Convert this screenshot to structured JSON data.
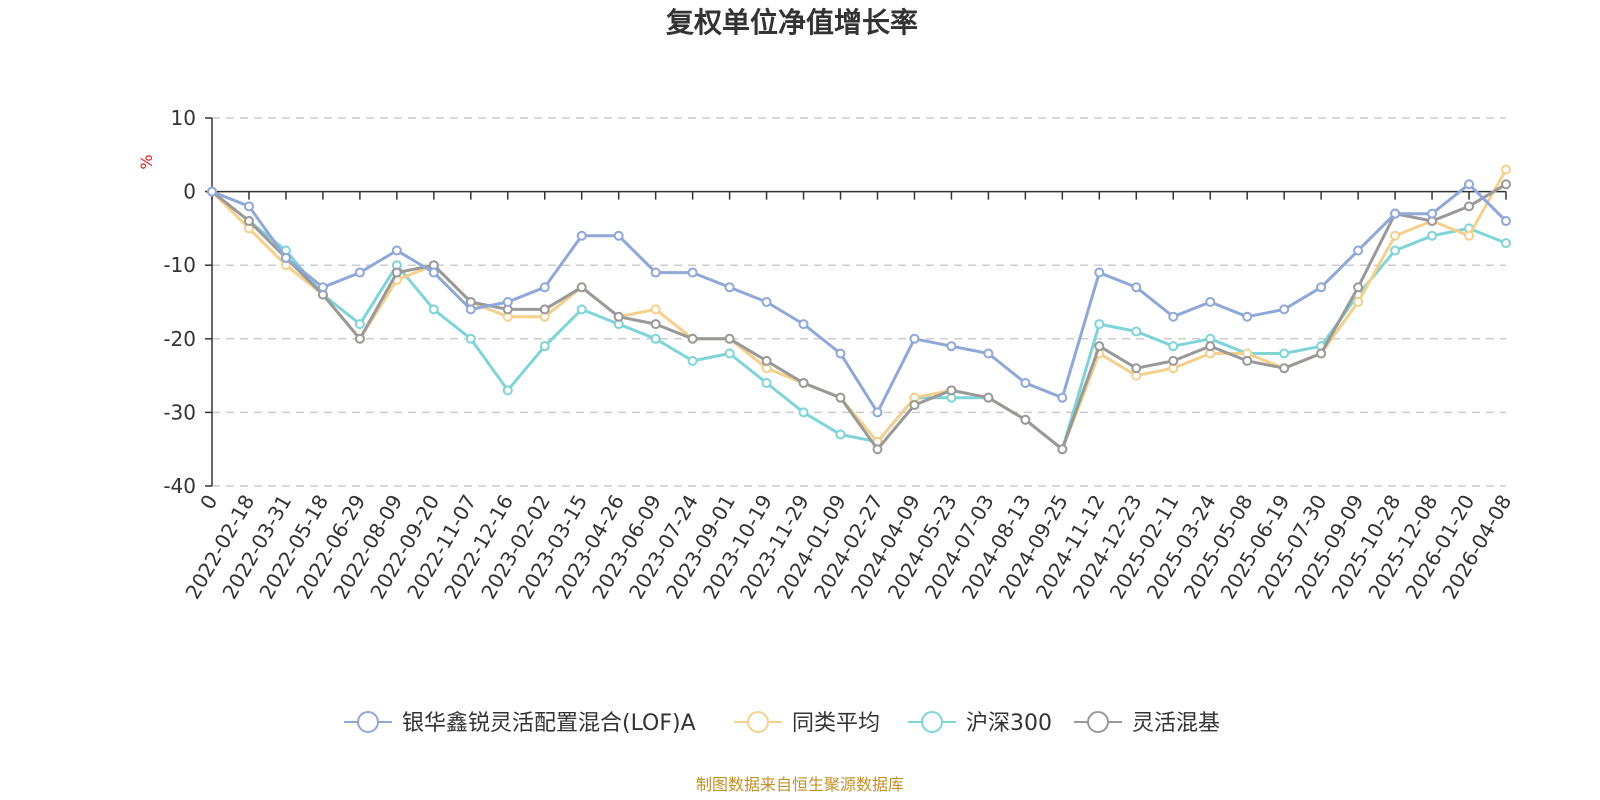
{
  "chart_data": {
    "type": "line",
    "title": "复权单位净值增长率",
    "ylabel": "%",
    "ylim": [
      -40,
      10
    ],
    "yticks": [
      "10",
      "0",
      "-10",
      "-20",
      "-30",
      "-40"
    ],
    "categories": [
      "0",
      "2022-02-18",
      "2022-03-31",
      "2022-05-18",
      "2022-06-29",
      "2022-08-09",
      "2022-09-20",
      "2022-11-07",
      "2022-12-16",
      "2023-02-02",
      "2023-03-15",
      "2023-04-26",
      "2023-06-09",
      "2023-07-24",
      "2023-09-01",
      "2023-10-19",
      "2023-11-29",
      "2024-01-09",
      "2024-02-27",
      "2024-04-09",
      "2024-05-23",
      "2024-07-03",
      "2024-08-13",
      "2024-09-25",
      "2024-11-12",
      "2024-12-23",
      "2025-02-11",
      "2025-03-24",
      "2025-05-08",
      "2025-06-19",
      "2025-07-30",
      "2025-09-09",
      "2025-10-28",
      "2025-12-08",
      "2026-01-20",
      "2026-04-08"
    ],
    "grid": "dashed-horizontal",
    "legend_position": "bottom",
    "series": [
      {
        "name": "银华鑫锐灵活配置混合(LOF)A",
        "color": "#8fa8d8",
        "values": [
          0,
          -2,
          -9,
          -13,
          -11,
          -8,
          -11,
          -16,
          -15,
          -13,
          -6,
          -6,
          -11,
          -11,
          -13,
          -15,
          -18,
          -22,
          -30,
          -20,
          -21,
          -22,
          -26,
          -28,
          -11,
          -13,
          -17,
          -15,
          -17,
          -16,
          -13,
          -8,
          -3,
          -3,
          1,
          -4
        ]
      },
      {
        "name": "同类平均",
        "color": "#f5d08c",
        "values": [
          0,
          -5,
          -10,
          -14,
          -20,
          -12,
          -10,
          -15,
          -17,
          -17,
          -13,
          -17,
          -16,
          -20,
          -20,
          -24,
          -26,
          -28,
          -34,
          -28,
          -27,
          -28,
          -31,
          -35,
          -22,
          -25,
          -24,
          -22,
          -22,
          -24,
          -22,
          -15,
          -6,
          -4,
          -6,
          3
        ]
      },
      {
        "name": "沪深300",
        "color": "#7fd4d8",
        "values": [
          0,
          -4,
          -8,
          -14,
          -18,
          -10,
          -16,
          -20,
          -27,
          -21,
          -16,
          -18,
          -20,
          -23,
          -22,
          -26,
          -30,
          -33,
          -34,
          -28,
          -28,
          -28,
          -31,
          -35,
          -18,
          -19,
          -21,
          -20,
          -22,
          -22,
          -21,
          -14,
          -8,
          -6,
          -5,
          -7
        ]
      },
      {
        "name": "灵活混基",
        "color": "#999999",
        "values": [
          0,
          -4,
          -9,
          -14,
          -20,
          -11,
          -10,
          -15,
          -16,
          -16,
          -13,
          -17,
          -18,
          -20,
          -20,
          -23,
          -26,
          -28,
          -35,
          -29,
          -27,
          -28,
          -31,
          -35,
          -21,
          -24,
          -23,
          -21,
          -23,
          -24,
          -22,
          -13,
          -3,
          -4,
          -2,
          1
        ]
      }
    ]
  },
  "source_text": "制图数据来自恒生聚源数据库"
}
